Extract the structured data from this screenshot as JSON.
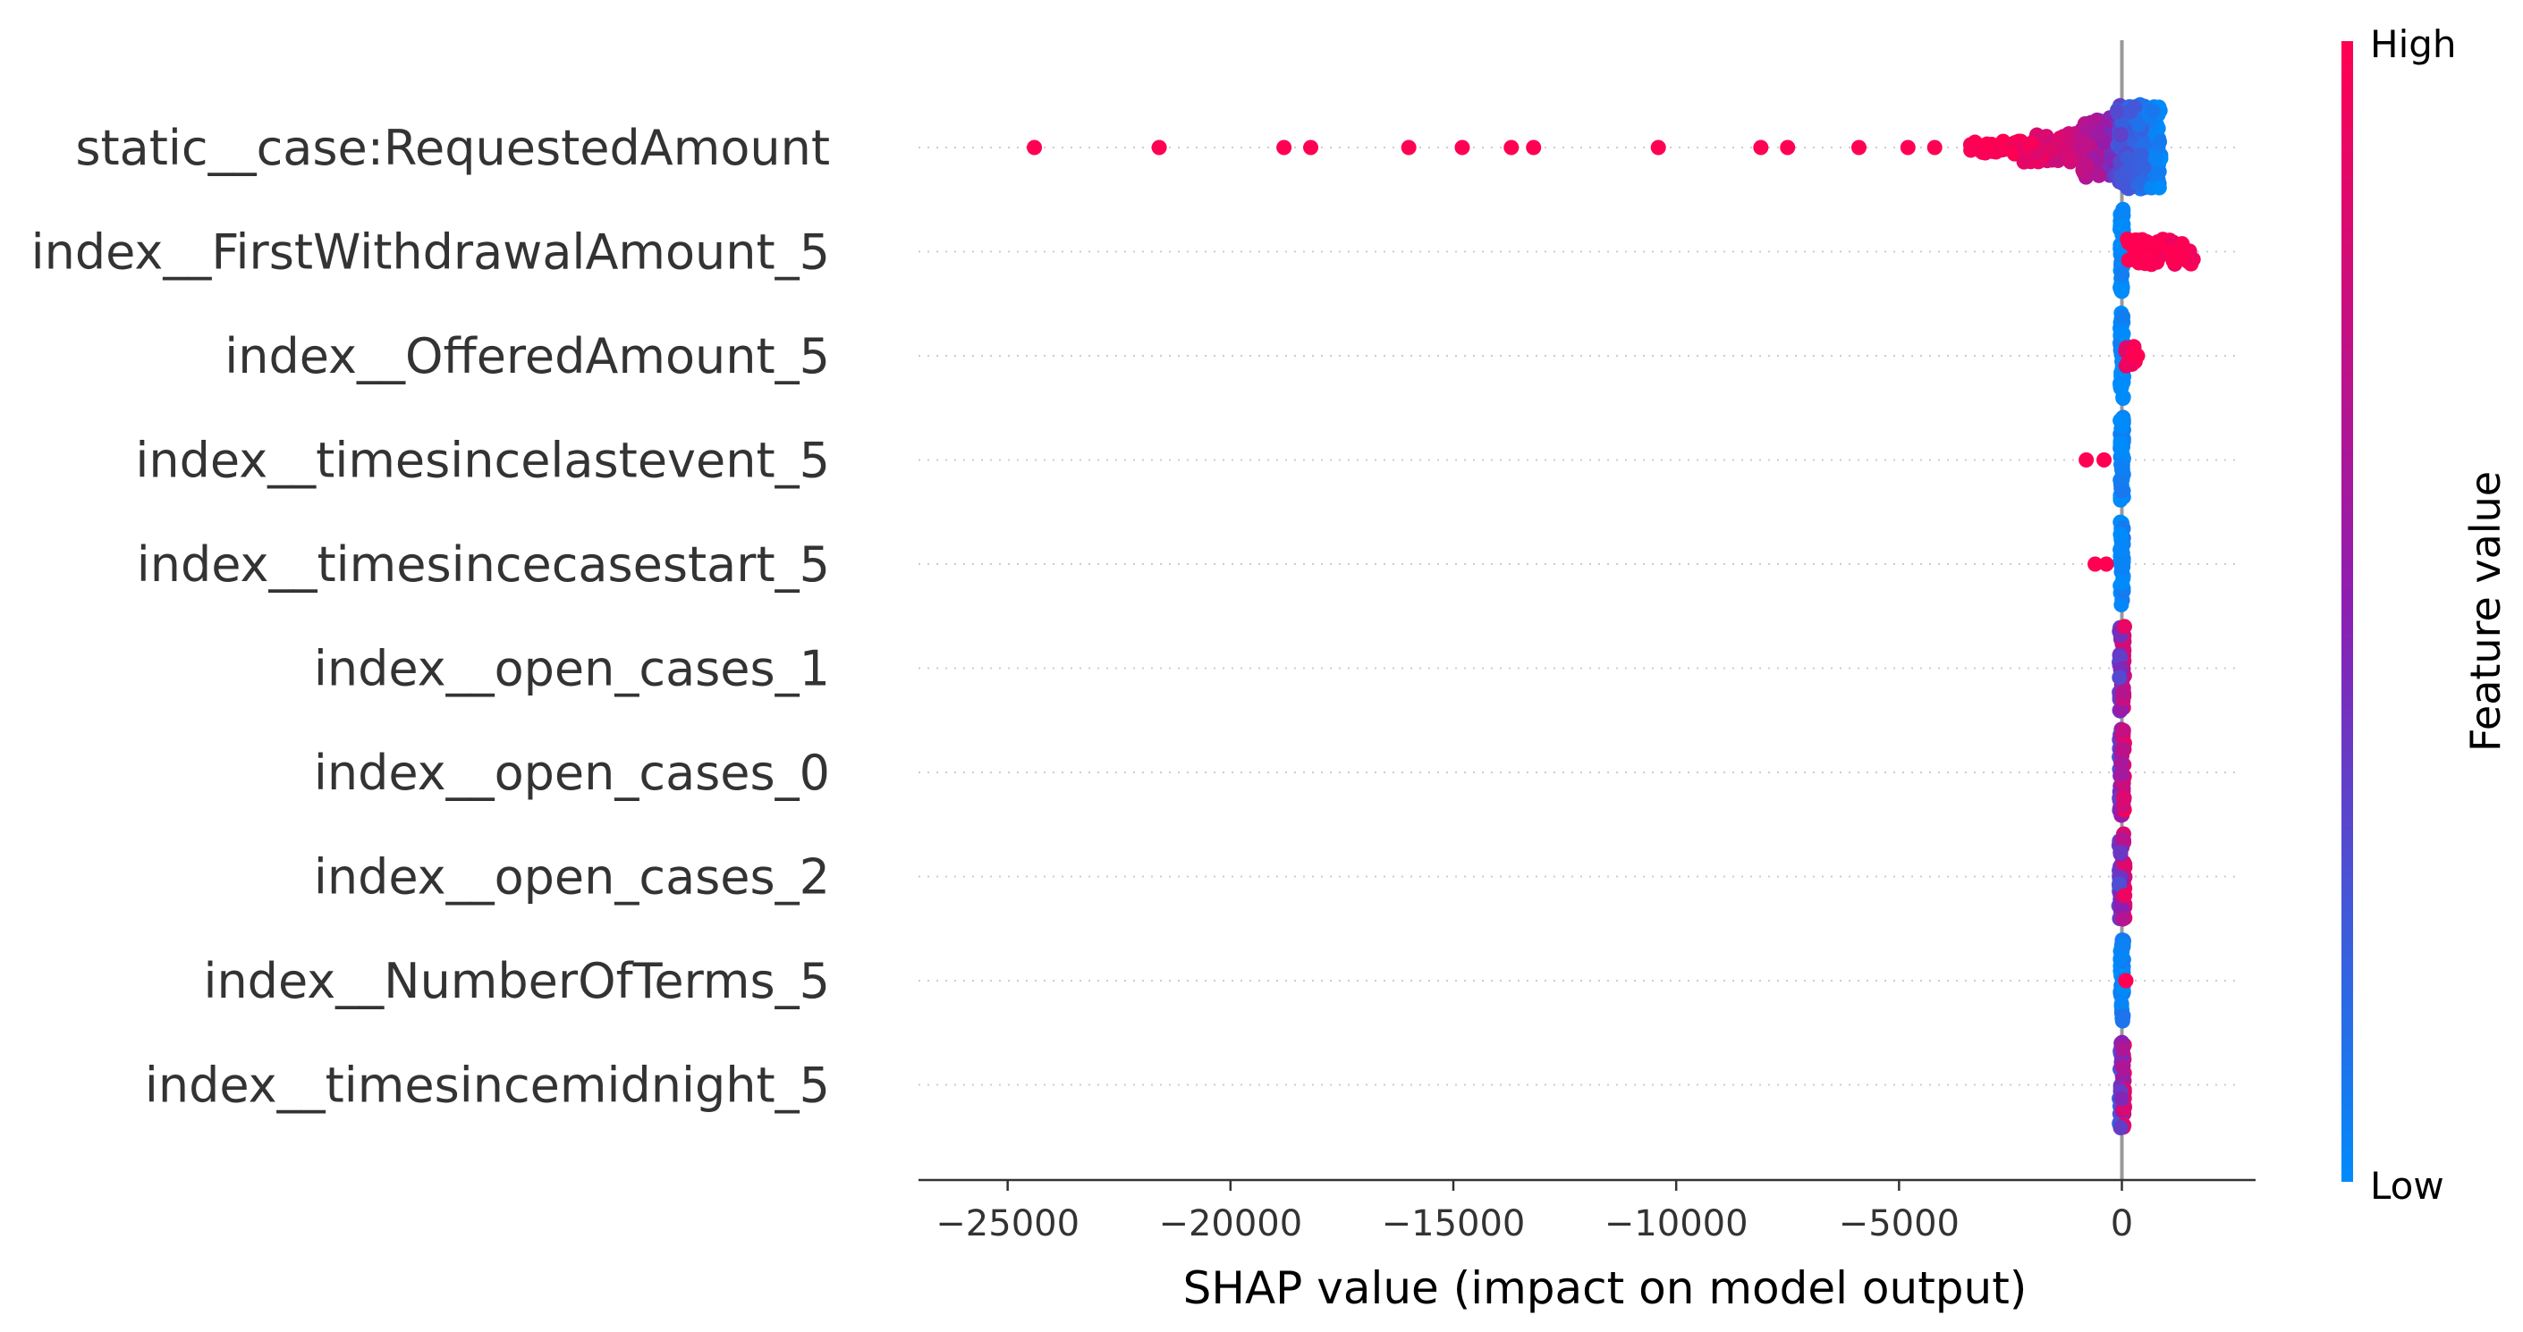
{
  "chart_data": {
    "type": "scatter",
    "subtype": "shap-beeswarm",
    "xlabel": "SHAP value (impact on model output)",
    "xlim": [
      -27000,
      3000
    ],
    "xticks": [
      -25000,
      -20000,
      -15000,
      -10000,
      -5000,
      0
    ],
    "xtick_labels": [
      "−25000",
      "−20000",
      "−15000",
      "−10000",
      "−5000",
      "0"
    ],
    "colorbar": {
      "title": "Feature value",
      "high_label": "High",
      "low_label": "Low",
      "high_color": "#ff0052",
      "mid_color": "#8b1fb3",
      "low_color": "#008bfb"
    },
    "zero_line_color": "#999999",
    "features": [
      {
        "name": "static__case:RequestedAmount",
        "points": [
          {
            "x": -24400,
            "v": 1
          },
          {
            "x": -21600,
            "v": 1
          },
          {
            "x": -18800,
            "v": 1
          },
          {
            "x": -18200,
            "v": 1
          },
          {
            "x": -16000,
            "v": 1
          },
          {
            "x": -14800,
            "v": 1
          },
          {
            "x": -13700,
            "v": 1
          },
          {
            "x": -13200,
            "v": 1
          },
          {
            "x": -10400,
            "v": 1
          },
          {
            "x": -8100,
            "v": 1
          },
          {
            "x": -7500,
            "v": 1
          },
          {
            "x": -5900,
            "v": 1
          },
          {
            "x": -4800,
            "v": 1
          },
          {
            "x": -4200,
            "v": 1
          }
        ],
        "cluster": [
          {
            "from": -3400,
            "to": -2200,
            "v_from": 1.0,
            "v_to": 0.95,
            "spread": 0.15,
            "n": 40
          },
          {
            "from": -2200,
            "to": -900,
            "v_from": 0.95,
            "v_to": 0.75,
            "spread": 0.35,
            "n": 70
          },
          {
            "from": -900,
            "to": -100,
            "v_from": 0.75,
            "v_to": 0.4,
            "spread": 0.7,
            "n": 90
          },
          {
            "from": -100,
            "to": 900,
            "v_from": 0.3,
            "v_to": 0.0,
            "spread": 1.0,
            "n": 160
          }
        ]
      },
      {
        "name": "index__FirstWithdrawalAmount_5",
        "points": [],
        "cluster": [
          {
            "from": -40,
            "to": 40,
            "v_from": 0.0,
            "v_to": 0.0,
            "spread": 1.0,
            "n": 50
          },
          {
            "from": 100,
            "to": 1600,
            "v_from": 1.0,
            "v_to": 1.0,
            "spread": 0.3,
            "n": 60
          }
        ]
      },
      {
        "name": "index__OfferedAmount_5",
        "points": [
          {
            "x": 350,
            "v": 1
          },
          {
            "x": 250,
            "v": 1
          }
        ],
        "cluster": [
          {
            "from": -40,
            "to": 40,
            "v_from": 0.0,
            "v_to": 0.0,
            "spread": 1.0,
            "n": 50
          },
          {
            "from": 60,
            "to": 300,
            "v_from": 0.9,
            "v_to": 1.0,
            "spread": 0.25,
            "n": 15
          }
        ]
      },
      {
        "name": "index__timesincelastevent_5",
        "points": [
          {
            "x": -800,
            "v": 1
          },
          {
            "x": -400,
            "v": 1
          }
        ],
        "cluster": [
          {
            "from": -40,
            "to": 40,
            "v_from": 0.0,
            "v_to": 0.05,
            "spread": 1.0,
            "n": 50
          }
        ]
      },
      {
        "name": "index__timesincecasestart_5",
        "points": [
          {
            "x": -600,
            "v": 1
          },
          {
            "x": -350,
            "v": 1
          }
        ],
        "cluster": [
          {
            "from": -40,
            "to": 40,
            "v_from": 0.0,
            "v_to": 0.05,
            "spread": 1.0,
            "n": 50
          }
        ]
      },
      {
        "name": "index__open_cases_1",
        "points": [],
        "cluster": [
          {
            "from": -60,
            "to": 60,
            "v_from": 0.3,
            "v_to": 0.9,
            "spread": 1.0,
            "n": 60
          }
        ]
      },
      {
        "name": "index__open_cases_0",
        "points": [],
        "cluster": [
          {
            "from": -60,
            "to": 60,
            "v_from": 0.3,
            "v_to": 0.95,
            "spread": 1.0,
            "n": 60
          }
        ]
      },
      {
        "name": "index__open_cases_2",
        "points": [],
        "cluster": [
          {
            "from": -70,
            "to": 70,
            "v_from": 0.25,
            "v_to": 0.9,
            "spread": 1.0,
            "n": 60
          }
        ]
      },
      {
        "name": "index__NumberOfTerms_5",
        "points": [
          {
            "x": 90,
            "v": 1
          }
        ],
        "cluster": [
          {
            "from": -40,
            "to": 40,
            "v_from": 0.0,
            "v_to": 0.05,
            "spread": 1.0,
            "n": 50
          }
        ]
      },
      {
        "name": "index__timesincemidnight_5",
        "points": [],
        "cluster": [
          {
            "from": -60,
            "to": 60,
            "v_from": 0.1,
            "v_to": 0.9,
            "spread": 1.0,
            "n": 60
          }
        ]
      }
    ]
  }
}
